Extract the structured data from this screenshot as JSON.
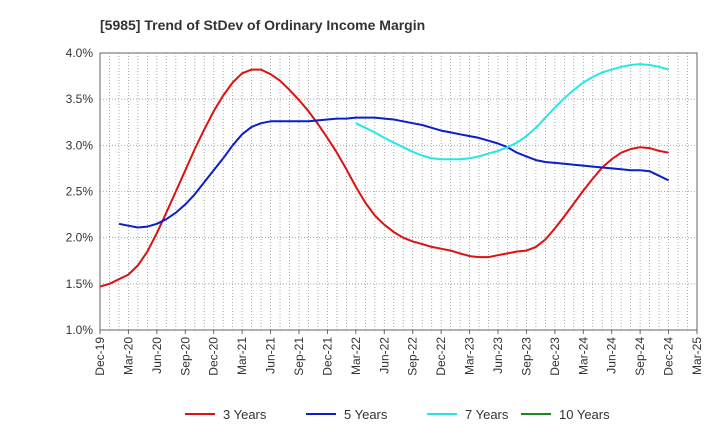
{
  "chart_data": {
    "type": "line",
    "title": "[5985]  Trend of StDev of Ordinary Income Margin",
    "xlabel": "",
    "ylabel": "",
    "x_ticks": [
      "Dec-19",
      "Mar-20",
      "Jun-20",
      "Sep-20",
      "Dec-20",
      "Mar-21",
      "Jun-21",
      "Sep-21",
      "Dec-21",
      "Mar-22",
      "Jun-22",
      "Sep-22",
      "Dec-22",
      "Mar-23",
      "Jun-23",
      "Sep-23",
      "Dec-23",
      "Mar-24",
      "Jun-24",
      "Sep-24",
      "Dec-24",
      "Mar-25"
    ],
    "y_ticks": [
      "1.0%",
      "1.5%",
      "2.0%",
      "2.5%",
      "3.0%",
      "3.5%",
      "4.0%"
    ],
    "ylim": [
      1.0,
      4.0
    ],
    "grid": "dotted",
    "legend_position": "bottom",
    "series": [
      {
        "name": "3 Years",
        "color": "#dd1111",
        "x": [
          "Dec-19",
          "Jan-20",
          "Feb-20",
          "Mar-20",
          "Apr-20",
          "May-20",
          "Jun-20",
          "Jul-20",
          "Aug-20",
          "Sep-20",
          "Oct-20",
          "Nov-20",
          "Dec-20",
          "Jan-21",
          "Feb-21",
          "Mar-21",
          "Apr-21",
          "May-21",
          "Jun-21",
          "Jul-21",
          "Aug-21",
          "Sep-21",
          "Oct-21",
          "Nov-21",
          "Dec-21",
          "Jan-22",
          "Feb-22",
          "Mar-22",
          "Apr-22",
          "May-22",
          "Jun-22",
          "Jul-22",
          "Aug-22",
          "Sep-22",
          "Oct-22",
          "Nov-22",
          "Dec-22",
          "Jan-23",
          "Feb-23",
          "Mar-23",
          "Apr-23",
          "May-23",
          "Jun-23",
          "Jul-23",
          "Aug-23",
          "Sep-23",
          "Oct-23",
          "Nov-23",
          "Dec-23",
          "Jan-24",
          "Feb-24",
          "Mar-24",
          "Apr-24",
          "May-24",
          "Jun-24",
          "Jul-24",
          "Aug-24",
          "Sep-24",
          "Oct-24",
          "Nov-24",
          "Dec-24"
        ],
        "values": [
          1.47,
          1.5,
          1.55,
          1.6,
          1.7,
          1.85,
          2.05,
          2.27,
          2.5,
          2.73,
          2.96,
          3.17,
          3.37,
          3.54,
          3.68,
          3.78,
          3.82,
          3.82,
          3.77,
          3.7,
          3.6,
          3.49,
          3.37,
          3.23,
          3.08,
          2.92,
          2.74,
          2.55,
          2.38,
          2.24,
          2.14,
          2.06,
          2.0,
          1.96,
          1.93,
          1.9,
          1.88,
          1.86,
          1.83,
          1.8,
          1.79,
          1.79,
          1.81,
          1.83,
          1.85,
          1.86,
          1.9,
          1.98,
          2.1,
          2.23,
          2.37,
          2.51,
          2.64,
          2.76,
          2.85,
          2.92,
          2.96,
          2.98,
          2.97,
          2.94,
          2.92
        ]
      },
      {
        "name": "5 Years",
        "color": "#0a1ecc",
        "x": [
          "Dec-19",
          "Jan-20",
          "Feb-20",
          "Mar-20",
          "Apr-20",
          "May-20",
          "Jun-20",
          "Jul-20",
          "Aug-20",
          "Sep-20",
          "Oct-20",
          "Nov-20",
          "Dec-20",
          "Jan-21",
          "Feb-21",
          "Mar-21",
          "Apr-21",
          "May-21",
          "Jun-21",
          "Jul-21",
          "Aug-21",
          "Sep-21",
          "Oct-21",
          "Nov-21",
          "Dec-21",
          "Jan-22",
          "Feb-22",
          "Mar-22",
          "Apr-22",
          "May-22",
          "Jun-22",
          "Jul-22",
          "Aug-22",
          "Sep-22",
          "Oct-22",
          "Nov-22",
          "Dec-22",
          "Jan-23",
          "Feb-23",
          "Mar-23",
          "Apr-23",
          "May-23",
          "Jun-23",
          "Jul-23",
          "Aug-23",
          "Sep-23",
          "Oct-23",
          "Nov-23",
          "Dec-23",
          "Jan-24",
          "Feb-24",
          "Mar-24",
          "Apr-24",
          "May-24",
          "Jun-24",
          "Jul-24",
          "Aug-24",
          "Sep-24",
          "Oct-24",
          "Nov-24",
          "Dec-24"
        ],
        "values": [
          null,
          null,
          2.15,
          2.13,
          2.11,
          2.12,
          2.15,
          2.2,
          2.27,
          2.36,
          2.47,
          2.6,
          2.73,
          2.86,
          3.0,
          3.12,
          3.2,
          3.24,
          3.26,
          3.26,
          3.26,
          3.26,
          3.26,
          3.27,
          3.28,
          3.29,
          3.29,
          3.3,
          3.3,
          3.3,
          3.29,
          3.28,
          3.26,
          3.24,
          3.22,
          3.19,
          3.16,
          3.14,
          3.12,
          3.1,
          3.08,
          3.05,
          3.02,
          2.98,
          2.92,
          2.88,
          2.84,
          2.82,
          2.81,
          2.8,
          2.79,
          2.78,
          2.77,
          2.76,
          2.75,
          2.74,
          2.73,
          2.73,
          2.72,
          2.67,
          2.62
        ]
      },
      {
        "name": "7 Years",
        "color": "#22e8e8",
        "x": [
          "Mar-22",
          "Apr-22",
          "May-22",
          "Jun-22",
          "Jul-22",
          "Aug-22",
          "Sep-22",
          "Oct-22",
          "Nov-22",
          "Dec-22",
          "Jan-23",
          "Feb-23",
          "Mar-23",
          "Apr-23",
          "May-23",
          "Jun-23",
          "Jul-23",
          "Aug-23",
          "Sep-23",
          "Oct-23",
          "Nov-23",
          "Dec-23",
          "Jan-24",
          "Feb-24",
          "Mar-24",
          "Apr-24",
          "May-24",
          "Jun-24",
          "Jul-24",
          "Aug-24",
          "Sep-24",
          "Oct-24",
          "Nov-24",
          "Dec-24"
        ],
        "values": [
          3.24,
          3.19,
          3.14,
          3.08,
          3.03,
          2.98,
          2.93,
          2.89,
          2.86,
          2.85,
          2.85,
          2.85,
          2.86,
          2.88,
          2.91,
          2.94,
          2.98,
          3.03,
          3.1,
          3.19,
          3.3,
          3.41,
          3.51,
          3.6,
          3.68,
          3.74,
          3.79,
          3.82,
          3.85,
          3.87,
          3.88,
          3.87,
          3.85,
          3.82
        ]
      },
      {
        "name": "10 Years",
        "color": "#1a8a1a",
        "x": [],
        "values": []
      }
    ]
  }
}
